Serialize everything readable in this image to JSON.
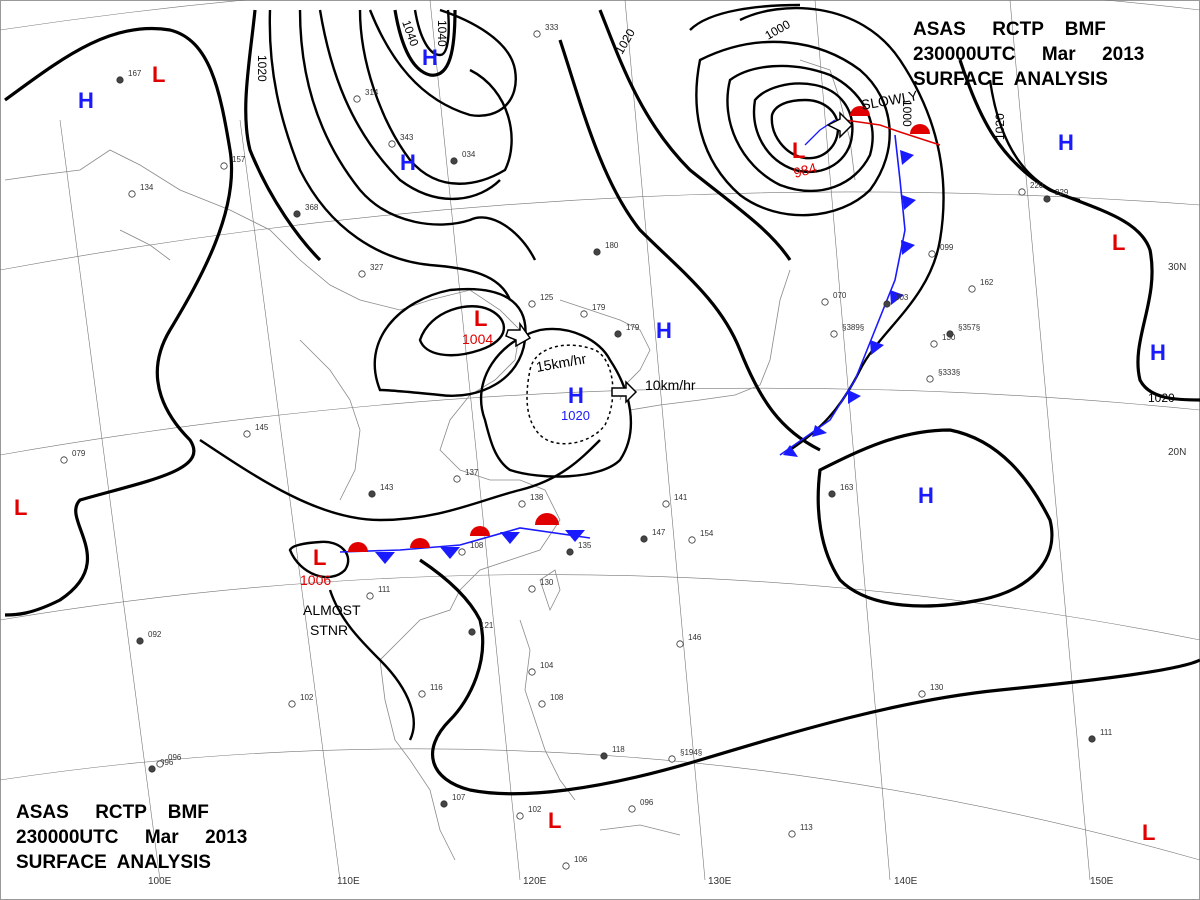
{
  "header": {
    "line1": [
      "ASAS",
      "RCTP",
      "BMF"
    ],
    "line2": [
      "230000UTC",
      "Mar",
      "2013"
    ],
    "line3": "SURFACE  ANALYSIS"
  },
  "colors": {
    "high": "#1a1aff",
    "low": "#e00000",
    "isobar": "#000000",
    "grid": "#777777",
    "coast": "#8a8a8a"
  },
  "pressure_centers": [
    {
      "type": "H",
      "color": "blue"
    },
    {
      "type": "H",
      "color": "blue"
    },
    {
      "type": "H",
      "color": "blue"
    },
    {
      "type": "H",
      "color": "blue"
    },
    {
      "type": "H",
      "color": "blue"
    },
    {
      "type": "H",
      "color": "blue"
    },
    {
      "type": "H",
      "color": "blue"
    },
    {
      "type": "H",
      "color": "blue"
    },
    {
      "type": "H",
      "color": "blue",
      "value": "1020"
    },
    {
      "type": "L",
      "color": "red"
    },
    {
      "type": "L",
      "color": "red",
      "value": "1004"
    },
    {
      "type": "L",
      "color": "red",
      "value": "984"
    },
    {
      "type": "L",
      "color": "red"
    },
    {
      "type": "L",
      "color": "red",
      "value": "1006"
    },
    {
      "type": "L",
      "color": "red"
    },
    {
      "type": "L",
      "color": "red"
    },
    {
      "type": "L",
      "color": "red"
    }
  ],
  "isobar_labels": [
    "1020",
    "1040",
    "1040",
    "1020",
    "1000",
    "1000",
    "1020",
    "1020"
  ],
  "annotations": {
    "slowly": "SLOWLY",
    "speed_1": "15km/hr",
    "speed_2": "10km/hr",
    "almost_stnr": [
      "ALMOST",
      "STNR"
    ]
  },
  "latitude_labels": [
    "30N",
    "20N"
  ],
  "longitude_labels": [
    "100E",
    "110E",
    "120E",
    "130E",
    "140E",
    "150E"
  ],
  "station_samples": [
    "167",
    "157",
    "134",
    "368",
    "314",
    "343",
    "034",
    "333",
    "327",
    "180",
    "125",
    "179",
    "179",
    "145",
    "137",
    "143",
    "138",
    "108",
    "135",
    "111",
    "130",
    "121",
    "116",
    "102",
    "096",
    "104",
    "108",
    "107",
    "102",
    "106",
    "118",
    "096",
    "141",
    "147",
    "154",
    "146",
    "163",
    "130",
    "113",
    "111",
    "099",
    "162",
    "229",
    "220",
    "070",
    "003",
    "130",
    "§389§",
    "§357§",
    "§333§",
    "§194§",
    "092",
    "096",
    "079"
  ]
}
